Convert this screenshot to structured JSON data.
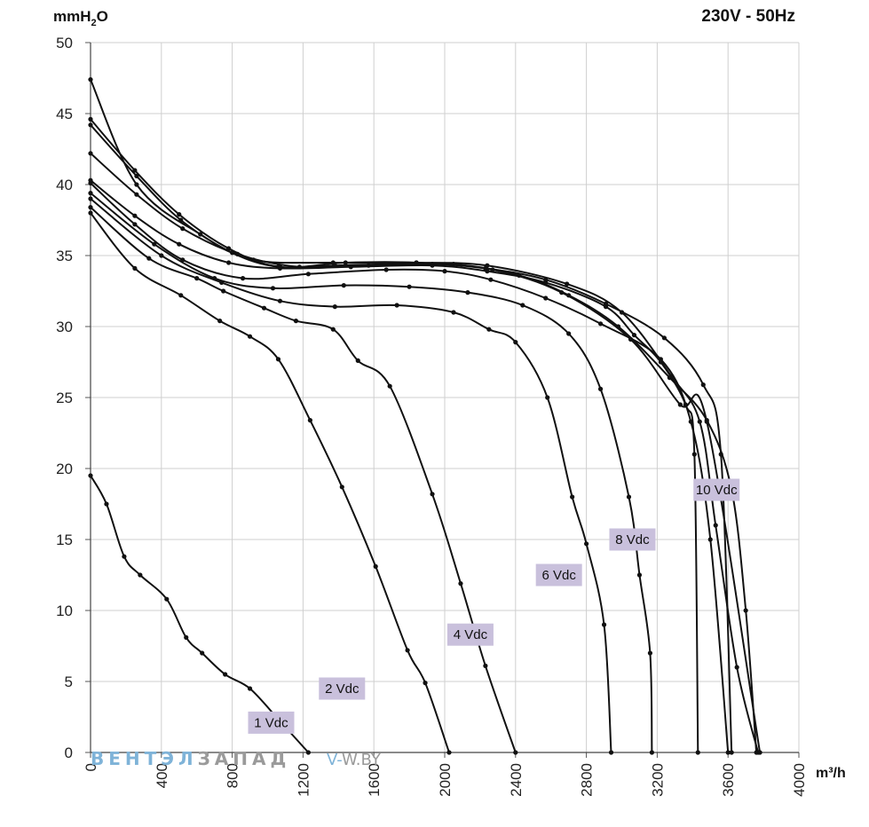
{
  "header": {
    "y_unit": "mmH2O",
    "supply": "230V - 50Hz"
  },
  "watermark": {
    "part1": "ВЕНТЭЛ",
    "part2": "ЗАПАД",
    "part3": "V-",
    "part4": "W.BY"
  },
  "colors": {
    "curve": "#111111",
    "grid": "#cfcfcf",
    "label_bg": "#c9c0dc",
    "watermark_blue": "#7fb3d8",
    "watermark_gray": "#9a9a9a"
  },
  "chart_data": {
    "type": "line",
    "xlabel": "m³/h",
    "ylabel": "mmH2O",
    "xlim": [
      0,
      4000
    ],
    "ylim": [
      0,
      50
    ],
    "x_ticks": [
      "0",
      "400",
      "800",
      "1200",
      "1600",
      "2000",
      "2400",
      "2800",
      "3200",
      "3600",
      "4000"
    ],
    "y_ticks": [
      "0",
      "5",
      "10",
      "15",
      "20",
      "25",
      "30",
      "35",
      "40",
      "45",
      "50"
    ],
    "grid": true,
    "series": [
      {
        "name": "1 Vdc",
        "label_at": [
          1020,
          2.1
        ],
        "points": [
          [
            0,
            19.5
          ],
          [
            90,
            17.5
          ],
          [
            190,
            13.8
          ],
          [
            280,
            12.5
          ],
          [
            430,
            10.8
          ],
          [
            540,
            8.1
          ],
          [
            630,
            7.0
          ],
          [
            760,
            5.5
          ],
          [
            900,
            4.5
          ],
          [
            1070,
            2.2
          ],
          [
            1230,
            0
          ]
        ]
      },
      {
        "name": "2 Vdc",
        "label_at": [
          1420,
          4.5
        ],
        "points": [
          [
            0,
            38.0
          ],
          [
            250,
            34.1
          ],
          [
            510,
            32.2
          ],
          [
            730,
            30.4
          ],
          [
            900,
            29.3
          ],
          [
            1060,
            27.7
          ],
          [
            1240,
            23.4
          ],
          [
            1420,
            18.7
          ],
          [
            1610,
            13.1
          ],
          [
            1790,
            7.2
          ],
          [
            1890,
            4.9
          ],
          [
            2025,
            0
          ]
        ]
      },
      {
        "name": "4 Vdc",
        "label_at": [
          2145,
          8.3
        ],
        "points": [
          [
            0,
            38.4
          ],
          [
            330,
            34.8
          ],
          [
            600,
            33.4
          ],
          [
            750,
            32.5
          ],
          [
            980,
            31.3
          ],
          [
            1160,
            30.4
          ],
          [
            1370,
            29.8
          ],
          [
            1510,
            27.6
          ],
          [
            1690,
            25.8
          ],
          [
            1930,
            18.2
          ],
          [
            2090,
            11.9
          ],
          [
            2230,
            6.1
          ],
          [
            2400,
            0
          ]
        ]
      },
      {
        "name": "6 Vdc",
        "label_at": [
          2645,
          12.5
        ],
        "points": [
          [
            0,
            39.0
          ],
          [
            400,
            35.0
          ],
          [
            740,
            33.1
          ],
          [
            1070,
            31.8
          ],
          [
            1380,
            31.4
          ],
          [
            1730,
            31.5
          ],
          [
            2050,
            31.0
          ],
          [
            2250,
            29.8
          ],
          [
            2400,
            28.9
          ],
          [
            2580,
            25.0
          ],
          [
            2720,
            18.0
          ],
          [
            2800,
            14.7
          ],
          [
            2900,
            9.0
          ],
          [
            2940,
            0
          ]
        ]
      },
      {
        "name": "8 Vdc",
        "label_at": [
          3060,
          15.0
        ],
        "points": [
          [
            0,
            39.4
          ],
          [
            360,
            35.8
          ],
          [
            700,
            33.4
          ],
          [
            1030,
            32.7
          ],
          [
            1430,
            32.9
          ],
          [
            1800,
            32.8
          ],
          [
            2130,
            32.4
          ],
          [
            2440,
            31.5
          ],
          [
            2700,
            29.5
          ],
          [
            2880,
            25.6
          ],
          [
            3040,
            18.0
          ],
          [
            3100,
            12.5
          ],
          [
            3160,
            7.0
          ],
          [
            3170,
            0
          ]
        ]
      },
      {
        "name": "10 Vdc",
        "label_at": [
          3535,
          18.5
        ],
        "points": [
          [
            0,
            40.1
          ],
          [
            250,
            37.2
          ],
          [
            520,
            34.7
          ],
          [
            860,
            33.4
          ],
          [
            1230,
            33.7
          ],
          [
            1670,
            34.0
          ],
          [
            2000,
            33.9
          ],
          [
            2260,
            33.3
          ],
          [
            2570,
            32.0
          ],
          [
            2880,
            30.2
          ],
          [
            3220,
            27.7
          ],
          [
            3390,
            23.3
          ],
          [
            3500,
            15.0
          ],
          [
            3600,
            0
          ]
        ]
      },
      {
        "name": "",
        "label_at": null,
        "points": [
          [
            0,
            40.3
          ],
          [
            250,
            37.8
          ],
          [
            500,
            35.8
          ],
          [
            780,
            34.5
          ],
          [
            1070,
            34.1
          ],
          [
            1470,
            34.2
          ],
          [
            1930,
            34.3
          ],
          [
            2240,
            33.9
          ],
          [
            2570,
            33.1
          ],
          [
            2910,
            31.4
          ],
          [
            3070,
            29.4
          ],
          [
            3220,
            27.5
          ],
          [
            3360,
            24.5
          ],
          [
            3410,
            21.0
          ],
          [
            3430,
            0
          ]
        ]
      },
      {
        "name": "",
        "label_at": null,
        "points": [
          [
            0,
            42.2
          ],
          [
            260,
            39.3
          ],
          [
            520,
            36.9
          ],
          [
            830,
            35.1
          ],
          [
            1180,
            34.2
          ],
          [
            1570,
            34.3
          ],
          [
            1930,
            34.4
          ],
          [
            2230,
            34.1
          ],
          [
            2570,
            33.3
          ],
          [
            2910,
            31.6
          ],
          [
            3240,
            29.2
          ],
          [
            3460,
            25.9
          ],
          [
            3560,
            21.0
          ],
          [
            3620,
            0
          ]
        ]
      },
      {
        "name": "",
        "label_at": null,
        "points": [
          [
            0,
            44.2
          ],
          [
            260,
            40.6
          ],
          [
            510,
            37.5
          ],
          [
            800,
            35.2
          ],
          [
            1060,
            34.2
          ],
          [
            1380,
            34.3
          ],
          [
            1690,
            34.4
          ],
          [
            2050,
            34.4
          ],
          [
            2420,
            33.6
          ],
          [
            2700,
            32.2
          ],
          [
            2980,
            30.0
          ],
          [
            3270,
            26.4
          ],
          [
            3480,
            23.4
          ],
          [
            3620,
            18.5
          ],
          [
            3700,
            10.0
          ],
          [
            3760,
            0
          ]
        ]
      },
      {
        "name": "",
        "label_at": null,
        "points": [
          [
            0,
            44.6
          ],
          [
            250,
            41.0
          ],
          [
            500,
            37.9
          ],
          [
            780,
            35.5
          ],
          [
            1070,
            34.2
          ],
          [
            1440,
            34.5
          ],
          [
            1840,
            34.5
          ],
          [
            2270,
            34.0
          ],
          [
            2660,
            32.4
          ],
          [
            3050,
            29.1
          ],
          [
            3330,
            24.5
          ],
          [
            3480,
            23.3
          ],
          [
            3780,
            0
          ]
        ]
      },
      {
        "name": "",
        "label_at": null,
        "points": [
          [
            0,
            47.4
          ],
          [
            260,
            40.0
          ],
          [
            620,
            36.5
          ],
          [
            920,
            34.7
          ],
          [
            1370,
            34.5
          ],
          [
            1840,
            34.5
          ],
          [
            2240,
            34.3
          ],
          [
            2690,
            33.0
          ],
          [
            3000,
            31.0
          ],
          [
            3280,
            26.5
          ],
          [
            3440,
            23.3
          ],
          [
            3530,
            16.0
          ],
          [
            3650,
            6.0
          ],
          [
            3770,
            0
          ]
        ]
      }
    ]
  }
}
